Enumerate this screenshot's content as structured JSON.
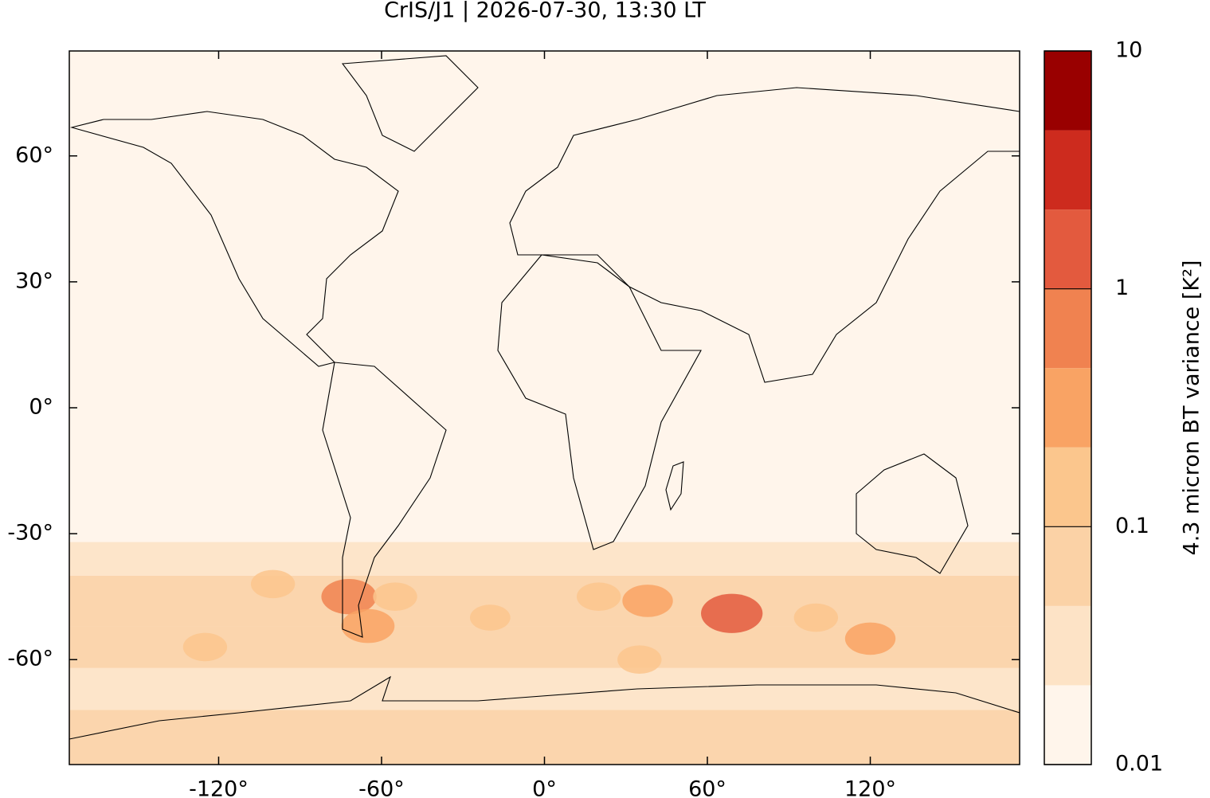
{
  "chart_data": {
    "type": "map",
    "title": "CrIS/J1 | 2026-07-30, 13:30 LT",
    "xlim": [
      -175,
      175
    ],
    "xticks": [
      {
        "value": -120,
        "label": "-120°"
      },
      {
        "value": -60,
        "label": "-60°"
      },
      {
        "value": 0,
        "label": "0°"
      },
      {
        "value": 60,
        "label": "60°"
      },
      {
        "value": 120,
        "label": "120°"
      }
    ],
    "ylim": [
      -85,
      85
    ],
    "yticks": [
      {
        "value": 60,
        "label": "60°"
      },
      {
        "value": 30,
        "label": "30°"
      },
      {
        "value": 0,
        "label": "0°"
      },
      {
        "value": -30,
        "label": "-30°"
      },
      {
        "value": -60,
        "label": "-60°"
      }
    ],
    "colorbar": {
      "label": "4.3 micron BT variance [K²]",
      "clim": [
        0.01,
        10
      ],
      "log": true,
      "ticks": [
        10,
        1,
        0.1,
        0.01
      ],
      "colors": [
        "#fff5eb",
        "#fde3c6",
        "#fbd2a6",
        "#fbc68d",
        "#f9a364",
        "#f08250",
        "#e35a3e",
        "#cd2b1e",
        "#990000"
      ]
    },
    "zonal": {
      "lat": [
        -85,
        -72,
        -62,
        -52,
        -40,
        -32
      ],
      "values": [
        0.05,
        0.04,
        0.08,
        0.06,
        0.03
      ]
    },
    "hotspots": [
      {
        "lon": -72,
        "lat": -45,
        "value": 0.5
      },
      {
        "lon": -65,
        "lat": -52,
        "value": 0.4
      },
      {
        "lon": -55,
        "lat": -45,
        "value": 0.15
      },
      {
        "lon": -100,
        "lat": -42,
        "value": 0.15
      },
      {
        "lon": -125,
        "lat": -57,
        "value": 0.15
      },
      {
        "lon": 38,
        "lat": -46,
        "value": 0.3
      },
      {
        "lon": 69,
        "lat": -49,
        "value": 1
      },
      {
        "lon": 120,
        "lat": -55,
        "value": 0.3
      },
      {
        "lon": 20,
        "lat": -45,
        "value": 0.15
      },
      {
        "lon": -20,
        "lat": -50,
        "value": 0.1
      },
      {
        "lon": 35,
        "lat": -60,
        "value": 0.15
      },
      {
        "lon": 100,
        "lat": -50,
        "value": 0.15
      }
    ]
  }
}
